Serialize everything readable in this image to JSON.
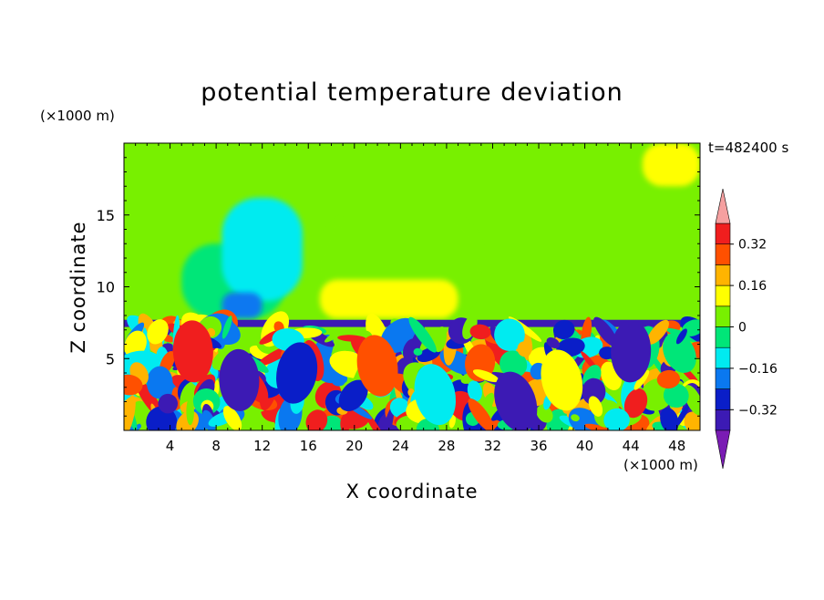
{
  "chart_data": {
    "type": "heatmap",
    "title": "potential temperature deviation",
    "xlabel": "X coordinate",
    "ylabel": "Z coordinate",
    "x_unit_label": "(×1000 m)",
    "y_unit_label": "(×1000 m)",
    "time_label": "t=482400 s",
    "xlim": [
      0,
      50
    ],
    "ylim": [
      0,
      20
    ],
    "x_ticks": [
      4,
      8,
      12,
      16,
      20,
      24,
      28,
      32,
      36,
      40,
      44,
      48
    ],
    "x_tick_labels": [
      "4",
      "8",
      "12",
      "16",
      "20",
      "24",
      "28",
      "32",
      "36",
      "40",
      "44",
      "48"
    ],
    "y_ticks": [
      5,
      10,
      15
    ],
    "y_tick_labels": [
      "5",
      "10",
      "15"
    ],
    "colorbar": {
      "levels": [
        -0.4,
        -0.32,
        -0.24,
        -0.16,
        -0.08,
        0,
        0.08,
        0.16,
        0.24,
        0.32,
        0.4
      ],
      "tick_values": [
        -0.32,
        -0.16,
        0,
        0.16,
        0.32
      ],
      "tick_labels": [
        "−0.32",
        "−0.16",
        "0",
        "0.16",
        "0.32"
      ],
      "colors": [
        "#7a1cb4",
        "#3c1ab4",
        "#0a1ec8",
        "#0a78f0",
        "#00ebf0",
        "#00e678",
        "#78f000",
        "#ffff00",
        "#ffb400",
        "#ff5000",
        "#f01e1e",
        "#f5a0a0"
      ],
      "extend": "both"
    },
    "regions": [
      {
        "x": [
          0,
          50
        ],
        "z": [
          7.6,
          20
        ],
        "value": 0.02
      },
      {
        "x": [
          5,
          14
        ],
        "z": [
          7.8,
          13
        ],
        "value": -0.06
      },
      {
        "x": [
          8.5,
          15.5
        ],
        "z": [
          9,
          16.2
        ],
        "value": -0.11
      },
      {
        "x": [
          8.5,
          12
        ],
        "z": [
          7.8,
          9.6
        ],
        "value": -0.2
      },
      {
        "x": [
          17,
          31
        ],
        "z": [
          7.8,
          15.2
        ],
        "value": 0.06
      },
      {
        "x": [
          17,
          29
        ],
        "z": [
          7.8,
          10.5
        ],
        "value": 0.13
      },
      {
        "x": [
          45,
          50
        ],
        "z": [
          17,
          20
        ],
        "value": 0.13
      },
      {
        "x": [
          0,
          50
        ],
        "z": [
          7.1,
          7.7
        ],
        "value": -0.36
      }
    ]
  }
}
